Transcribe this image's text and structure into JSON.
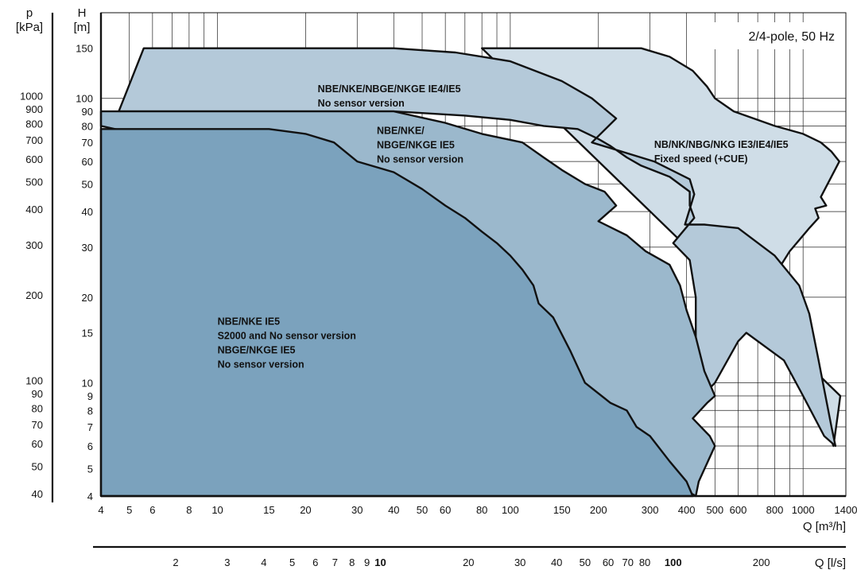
{
  "chart_data": {
    "type": "area",
    "title_box": "2/4-pole, 50 Hz",
    "x_scale": "log",
    "y_scale": "log",
    "xlim": [
      4,
      1400
    ],
    "ylim": [
      4,
      200
    ],
    "x_axis": {
      "label": "Q [m³/h]",
      "ticks": [
        4,
        5,
        6,
        8,
        10,
        15,
        20,
        30,
        40,
        50,
        60,
        80,
        100,
        150,
        200,
        300,
        400,
        500,
        600,
        800,
        1000,
        1400
      ],
      "tick_labels": [
        "4",
        "5",
        "6",
        "8",
        "10",
        "15",
        "20",
        "30",
        "40",
        "50",
        "60",
        "80",
        "100",
        "150",
        "200",
        "300",
        "400",
        "500",
        "600",
        "800",
        "1000",
        "1400"
      ]
    },
    "x2_axis": {
      "label": "Q [l/s]",
      "ticks_ls": [
        2,
        3,
        4,
        5,
        6,
        7,
        8,
        9,
        10,
        20,
        30,
        40,
        50,
        60,
        70,
        80,
        100,
        200
      ],
      "tick_labels": [
        "2",
        "3",
        "4",
        "5",
        "6",
        "7",
        "8",
        "9",
        "10",
        "20",
        "30",
        "40",
        "50",
        "60",
        "70",
        "80",
        "100",
        "200"
      ],
      "bold_labels": [
        "10",
        "100"
      ]
    },
    "y_axis": {
      "label_line1": "H",
      "label_line2": "[m]",
      "ticks": [
        4,
        5,
        6,
        7,
        8,
        9,
        10,
        15,
        20,
        30,
        40,
        50,
        60,
        70,
        80,
        90,
        100,
        150
      ],
      "tick_labels": [
        "4",
        "5",
        "6",
        "7",
        "8",
        "9",
        "10",
        "15",
        "20",
        "30",
        "40",
        "50",
        "60",
        "70",
        "80",
        "90",
        "100",
        "150"
      ]
    },
    "y2_axis": {
      "label_line1": "p",
      "label_line2": "[kPa]",
      "ticks_kpa": [
        40,
        50,
        60,
        70,
        80,
        90,
        100,
        200,
        300,
        400,
        500,
        600,
        700,
        800,
        900,
        1000
      ],
      "tick_labels": [
        "40",
        "50",
        "60",
        "70",
        "80",
        "90",
        "100",
        "200",
        "300",
        "400",
        "500",
        "600",
        "700",
        "800",
        "900",
        "1000"
      ]
    },
    "grid": true,
    "series": [
      {
        "name": "NB/NK/NBG/NKG IE3/IE4/IE5 Fixed speed (+CUE)",
        "label_lines": [
          "NB/NK/NBG/NKG IE3/IE4/IE5",
          "Fixed speed (+CUE)"
        ],
        "label_at": [
          310,
          67
        ],
        "color": "#cfdde7",
        "points": [
          [
            80,
            150
          ],
          [
            280,
            150
          ],
          [
            350,
            140
          ],
          [
            420,
            125
          ],
          [
            470,
            110
          ],
          [
            500,
            100
          ],
          [
            580,
            90
          ],
          [
            800,
            80
          ],
          [
            1000,
            75
          ],
          [
            1150,
            70
          ],
          [
            1250,
            65
          ],
          [
            1330,
            60
          ],
          [
            1150,
            45
          ],
          [
            1200,
            42
          ],
          [
            1100,
            41
          ],
          [
            1130,
            38
          ],
          [
            1050,
            35
          ],
          [
            900,
            29
          ],
          [
            760,
            22
          ],
          [
            880,
            15
          ],
          [
            1020,
            11
          ],
          [
            1150,
            8.5
          ],
          [
            1200,
            7
          ],
          [
            1270,
            6
          ],
          [
            1320,
            8
          ],
          [
            1340,
            9
          ]
        ]
      },
      {
        "name": "NBE/NKE/NBGE/NKGE IE4/IE5 No sensor version",
        "label_lines": [
          "NBE/NKE/NBGE/NKGE IE4/IE5",
          "No sensor version"
        ],
        "label_at": [
          22,
          105
        ],
        "color": "#b4c9d9",
        "points": [
          [
            4.6,
            90
          ],
          [
            5.6,
            150
          ],
          [
            28,
            150
          ],
          [
            40,
            150
          ],
          [
            65,
            145
          ],
          [
            100,
            135
          ],
          [
            150,
            115
          ],
          [
            190,
            100
          ],
          [
            230,
            85
          ],
          [
            190,
            70
          ],
          [
            310,
            60
          ],
          [
            410,
            52
          ],
          [
            425,
            46
          ],
          [
            395,
            36
          ],
          [
            460,
            36
          ],
          [
            600,
            35
          ],
          [
            800,
            28
          ],
          [
            970,
            22
          ],
          [
            1050,
            17.5
          ],
          [
            1130,
            12
          ],
          [
            1180,
            9.5
          ],
          [
            1250,
            7
          ],
          [
            1290,
            6
          ],
          [
            1180,
            6.5
          ],
          [
            1000,
            9
          ],
          [
            860,
            12
          ],
          [
            640,
            15
          ],
          [
            600,
            14
          ],
          [
            500,
            10
          ],
          [
            430,
            8.5
          ],
          [
            400,
            11.5
          ],
          [
            430,
            14.5
          ],
          [
            430,
            20
          ],
          [
            410,
            27
          ],
          [
            360,
            31
          ],
          [
            425,
            38
          ],
          [
            410,
            42
          ],
          [
            410,
            47
          ],
          [
            350,
            53
          ],
          [
            280,
            58
          ],
          [
            250,
            62
          ],
          [
            220,
            68
          ],
          [
            200,
            72
          ],
          [
            170,
            78
          ],
          [
            130,
            80
          ],
          [
            100,
            84
          ],
          [
            70,
            87
          ],
          [
            40,
            90
          ],
          [
            20,
            90
          ],
          [
            10,
            90
          ]
        ]
      },
      {
        "name": "NBE/NKE/NBGE/NKGE IE5 No sensor version",
        "label_lines": [
          "NBE/NKE/",
          "NBGE/NKGE IE5",
          "No sensor version"
        ],
        "label_at": [
          35,
          75
        ],
        "color": "#9bb8cc",
        "points": [
          [
            4,
            90
          ],
          [
            40,
            90
          ],
          [
            60,
            82
          ],
          [
            80,
            75
          ],
          [
            110,
            70
          ],
          [
            130,
            62
          ],
          [
            150,
            56
          ],
          [
            180,
            50
          ],
          [
            210,
            47
          ],
          [
            230,
            42
          ],
          [
            200,
            37
          ],
          [
            250,
            33
          ],
          [
            290,
            29
          ],
          [
            350,
            26
          ],
          [
            380,
            22
          ],
          [
            400,
            18
          ],
          [
            430,
            14.5
          ],
          [
            460,
            11
          ],
          [
            500,
            9
          ],
          [
            470,
            8.5
          ],
          [
            420,
            7.5
          ],
          [
            480,
            6.5
          ],
          [
            500,
            6
          ],
          [
            440,
            4.5
          ],
          [
            430,
            4
          ],
          [
            300,
            5
          ],
          [
            200,
            6.5
          ],
          [
            150,
            8
          ],
          [
            120,
            9.5
          ],
          [
            110,
            11
          ],
          [
            90,
            13
          ],
          [
            80,
            15
          ],
          [
            70,
            18
          ],
          [
            60,
            22
          ],
          [
            50,
            27
          ],
          [
            40,
            33
          ],
          [
            30,
            40
          ],
          [
            20,
            50
          ],
          [
            10,
            65
          ],
          [
            4,
            80
          ]
        ]
      },
      {
        "name": "NBE/NKE IE5 S2000 and No sensor version / NBGE/NKGE IE5 No sensor version",
        "label_lines": [
          "NBE/NKE IE5",
          "S2000 and No sensor version",
          "",
          "NBGE/NKGE IE5",
          "No sensor version"
        ],
        "label_at": [
          10,
          16
        ],
        "color": "#7ba2bd",
        "points": [
          [
            4,
            78
          ],
          [
            15,
            78
          ],
          [
            20,
            75
          ],
          [
            25,
            70
          ],
          [
            30,
            60
          ],
          [
            40,
            55
          ],
          [
            50,
            48
          ],
          [
            60,
            42
          ],
          [
            70,
            38
          ],
          [
            80,
            34
          ],
          [
            90,
            31
          ],
          [
            100,
            28
          ],
          [
            110,
            25
          ],
          [
            120,
            22
          ],
          [
            125,
            19
          ],
          [
            140,
            17
          ],
          [
            160,
            13
          ],
          [
            180,
            10
          ],
          [
            220,
            8.5
          ],
          [
            250,
            8
          ],
          [
            270,
            7
          ],
          [
            300,
            6.5
          ],
          [
            350,
            5.3
          ],
          [
            400,
            4.5
          ],
          [
            420,
            4
          ],
          [
            4,
            4
          ]
        ]
      }
    ]
  }
}
